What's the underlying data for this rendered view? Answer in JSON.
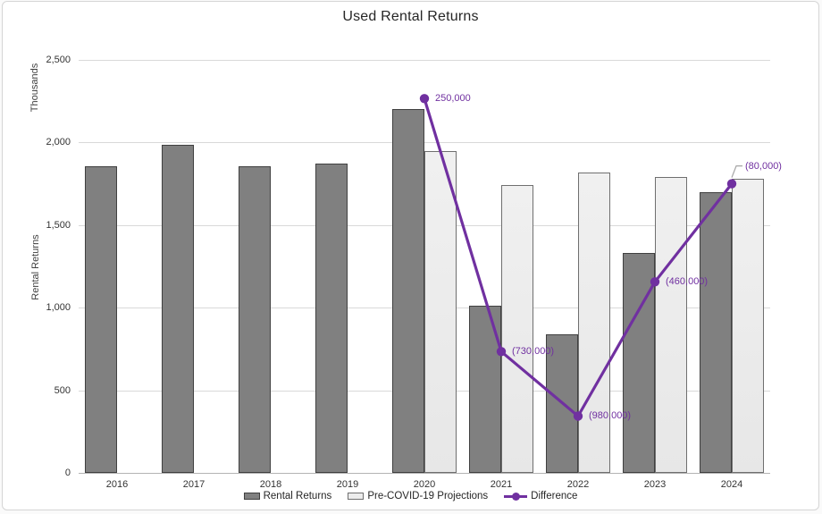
{
  "chart_data": {
    "type": "combo",
    "title": "Used Rental Returns",
    "categories": [
      "2016",
      "2017",
      "2018",
      "2019",
      "2020",
      "2021",
      "2022",
      "2023",
      "2024"
    ],
    "series": [
      {
        "name": "Rental Returns",
        "type": "bar",
        "color": "#808080",
        "border_color": "#404040",
        "values": [
          1855,
          1985,
          1855,
          1875,
          2200,
          1010,
          840,
          1330,
          1700
        ]
      },
      {
        "name": "Pre-COVID-19 Projections",
        "type": "bar",
        "color": "#ececec",
        "border_color": "#6f6f6f",
        "values": [
          null,
          null,
          null,
          null,
          1950,
          1740,
          1820,
          1790,
          1780
        ]
      },
      {
        "name": "Difference",
        "type": "line",
        "axis": "secondary",
        "color": "#7030a0",
        "values": [
          null,
          null,
          null,
          null,
          250,
          -730,
          -980,
          -460,
          -80
        ],
        "point_labels": [
          null,
          null,
          null,
          null,
          "250,000",
          "(730,000)",
          "(980,000)",
          "(460,000)",
          "(80,000)"
        ],
        "last_label_has_leader": true
      }
    ],
    "primary_axis": {
      "title": "Rental Returns",
      "units_label": "Thousands",
      "min": 0,
      "max": 2500,
      "tick_step": 500,
      "tick_labels": [
        "0",
        "500",
        "1,000",
        "1,500",
        "2,000",
        "2,500"
      ]
    },
    "secondary_axis": {
      "min": -1200,
      "max": 400,
      "visible": false
    },
    "grid": true,
    "legend_position": "bottom",
    "colors": {
      "grid": "#d9d9d9",
      "axis_line": "#b3b3b3",
      "tick_text": "#333333",
      "title_text": "#262626",
      "accent_purple": "#7030a0",
      "leader_line": "#a6a6a6"
    }
  }
}
